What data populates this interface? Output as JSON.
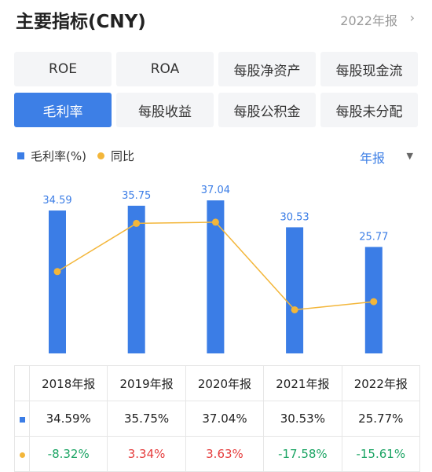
{
  "header": {
    "title": "主要指标(CNY)",
    "period": "2022年报"
  },
  "tabs": {
    "items": [
      "ROE",
      "ROA",
      "每股净资产",
      "每股现金流",
      "毛利率",
      "每股收益",
      "每股公积金",
      "每股未分配"
    ],
    "active": 4
  },
  "filter": "年报",
  "chart_data": {
    "type": "bar-line",
    "categories": [
      "2018年报",
      "2019年报",
      "2020年报",
      "2021年报",
      "2022年报"
    ],
    "series": [
      {
        "name": "毛利率(%)",
        "color": "#3b7de6",
        "values": [
          34.59,
          35.75,
          37.04,
          30.53,
          25.77
        ]
      },
      {
        "name": "同比",
        "color": "#f3b63a",
        "values": [
          -8.32,
          3.34,
          3.63,
          -17.58,
          -15.61
        ]
      }
    ]
  },
  "table": {
    "rows": [
      [
        "34.59%",
        "35.75%",
        "37.04%",
        "30.53%",
        "25.77%"
      ],
      [
        "-8.32%",
        "3.34%",
        "3.63%",
        "-17.58%",
        "-15.61%"
      ]
    ]
  }
}
